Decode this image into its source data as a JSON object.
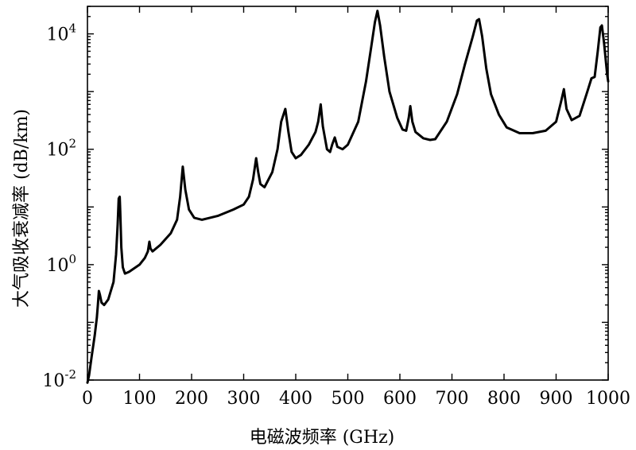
{
  "chart_data": {
    "type": "line",
    "xlabel": "电磁波频率 (GHz)",
    "ylabel": "大气吸收衰减率 (dB/km)",
    "xlim": [
      0,
      1000
    ],
    "ylim": [
      0.01,
      30000
    ],
    "y_scale": "log",
    "grid": false,
    "x_ticks": [
      {
        "value": 0,
        "label": "0"
      },
      {
        "value": 100,
        "label": "100"
      },
      {
        "value": 200,
        "label": "200"
      },
      {
        "value": 300,
        "label": "300"
      },
      {
        "value": 400,
        "label": "400"
      },
      {
        "value": 500,
        "label": "500"
      },
      {
        "value": 600,
        "label": "600"
      },
      {
        "value": 700,
        "label": "700"
      },
      {
        "value": 800,
        "label": "800"
      },
      {
        "value": 900,
        "label": "900"
      },
      {
        "value": 1000,
        "label": "1000"
      }
    ],
    "y_ticks": [
      {
        "value": 0.01,
        "base": "10",
        "exp": "-2"
      },
      {
        "value": 1,
        "base": "10",
        "exp": "0"
      },
      {
        "value": 100,
        "base": "10",
        "exp": "2"
      },
      {
        "value": 10000,
        "base": "10",
        "exp": "4"
      }
    ],
    "series": [
      {
        "color": "#000000",
        "points": [
          [
            0,
            0.009
          ],
          [
            3,
            0.012
          ],
          [
            8,
            0.025
          ],
          [
            14,
            0.06
          ],
          [
            18,
            0.12
          ],
          [
            20,
            0.2
          ],
          [
            22,
            0.35
          ],
          [
            24,
            0.3
          ],
          [
            27,
            0.22
          ],
          [
            32,
            0.2
          ],
          [
            40,
            0.25
          ],
          [
            50,
            0.5
          ],
          [
            55,
            1.5
          ],
          [
            58,
            5
          ],
          [
            60,
            14
          ],
          [
            62,
            15
          ],
          [
            63,
            8
          ],
          [
            65,
            2
          ],
          [
            68,
            0.9
          ],
          [
            72,
            0.7
          ],
          [
            80,
            0.75
          ],
          [
            100,
            1.0
          ],
          [
            110,
            1.3
          ],
          [
            116,
            1.7
          ],
          [
            119,
            2.5
          ],
          [
            121,
            1.9
          ],
          [
            125,
            1.7
          ],
          [
            140,
            2.2
          ],
          [
            160,
            3.5
          ],
          [
            172,
            6
          ],
          [
            178,
            15
          ],
          [
            183,
            50
          ],
          [
            188,
            20
          ],
          [
            195,
            9
          ],
          [
            205,
            6.5
          ],
          [
            220,
            6
          ],
          [
            250,
            7
          ],
          [
            280,
            9
          ],
          [
            300,
            11
          ],
          [
            310,
            15
          ],
          [
            318,
            30
          ],
          [
            324,
            70
          ],
          [
            328,
            40
          ],
          [
            332,
            25
          ],
          [
            340,
            22
          ],
          [
            355,
            40
          ],
          [
            365,
            100
          ],
          [
            372,
            300
          ],
          [
            380,
            500
          ],
          [
            386,
            200
          ],
          [
            392,
            90
          ],
          [
            400,
            70
          ],
          [
            410,
            80
          ],
          [
            425,
            120
          ],
          [
            438,
            200
          ],
          [
            443,
            300
          ],
          [
            448,
            600
          ],
          [
            452,
            250
          ],
          [
            460,
            100
          ],
          [
            466,
            90
          ],
          [
            470,
            120
          ],
          [
            475,
            160
          ],
          [
            480,
            110
          ],
          [
            490,
            100
          ],
          [
            500,
            120
          ],
          [
            520,
            300
          ],
          [
            535,
            1500
          ],
          [
            545,
            6000
          ],
          [
            552,
            16000
          ],
          [
            557,
            25000
          ],
          [
            562,
            14000
          ],
          [
            570,
            4000
          ],
          [
            580,
            1000
          ],
          [
            595,
            350
          ],
          [
            605,
            220
          ],
          [
            612,
            210
          ],
          [
            617,
            350
          ],
          [
            620,
            560
          ],
          [
            624,
            300
          ],
          [
            630,
            200
          ],
          [
            645,
            155
          ],
          [
            658,
            145
          ],
          [
            668,
            150
          ],
          [
            690,
            300
          ],
          [
            710,
            900
          ],
          [
            725,
            3000
          ],
          [
            740,
            9000
          ],
          [
            748,
            17000
          ],
          [
            752,
            18000
          ],
          [
            758,
            9000
          ],
          [
            766,
            2500
          ],
          [
            775,
            900
          ],
          [
            790,
            400
          ],
          [
            805,
            240
          ],
          [
            830,
            190
          ],
          [
            855,
            190
          ],
          [
            880,
            210
          ],
          [
            900,
            300
          ],
          [
            910,
            700
          ],
          [
            915,
            1100
          ],
          [
            920,
            500
          ],
          [
            930,
            320
          ],
          [
            945,
            380
          ],
          [
            960,
            1000
          ],
          [
            968,
            1700
          ],
          [
            974,
            1800
          ],
          [
            980,
            5000
          ],
          [
            985,
            13000
          ],
          [
            988,
            14000
          ],
          [
            992,
            7000
          ],
          [
            998,
            2000
          ],
          [
            1000,
            1500
          ]
        ]
      }
    ]
  }
}
